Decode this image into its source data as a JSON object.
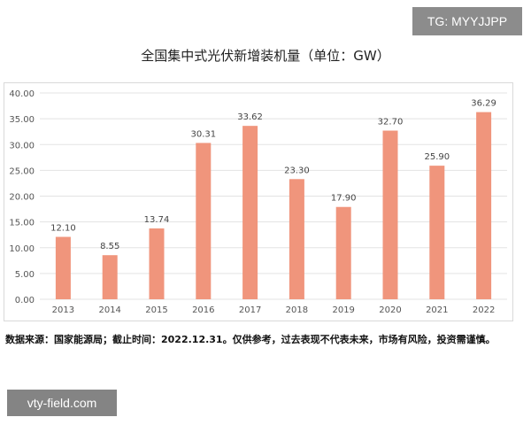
{
  "watermarks": {
    "top": "TG: MYYJJPP",
    "bottom": "vty-field.com"
  },
  "source_note": "数据来源：国家能源局；截止时间：2022.12.31。仅供参考，过去表现不代表未来，市场有风险，投资需谨慎。",
  "chart_data": {
    "type": "bar",
    "title": "全国集中式光伏新增装机量（单位：GW）",
    "categories": [
      "2013",
      "2014",
      "2015",
      "2016",
      "2017",
      "2018",
      "2019",
      "2020",
      "2021",
      "2022"
    ],
    "values": [
      12.1,
      8.55,
      13.74,
      30.31,
      33.62,
      23.3,
      17.9,
      32.7,
      25.9,
      36.29
    ],
    "data_labels": [
      "12.10",
      "8.55",
      "13.74",
      "30.31",
      "33.62",
      "23.30",
      "17.90",
      "32.70",
      "25.90",
      "36.29"
    ],
    "yticks": [
      "0.00",
      "5.00",
      "10.00",
      "15.00",
      "20.00",
      "25.00",
      "30.00",
      "35.00",
      "40.00"
    ],
    "ylim": [
      0,
      40
    ],
    "grid": true,
    "legend": "none",
    "bar_color": "#f0957c",
    "grid_color": "#e3e3e3"
  }
}
